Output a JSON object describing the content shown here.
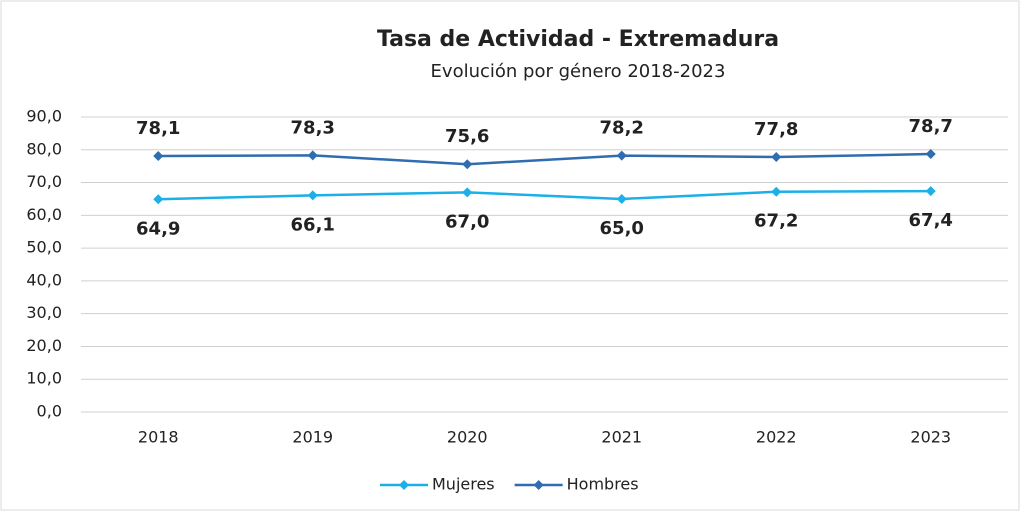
{
  "chart_data": {
    "type": "line",
    "title": "Tasa de Actividad - Extremadura",
    "subtitle": "Evolución por género 2018-2023",
    "categories": [
      "2018",
      "2019",
      "2020",
      "2021",
      "2022",
      "2023"
    ],
    "series": [
      {
        "name": "Mujeres",
        "color": "#1cb0e8",
        "values": [
          64.9,
          66.1,
          67.0,
          65.0,
          67.2,
          67.4
        ],
        "value_labels": [
          "64,9",
          "66,1",
          "67,0",
          "65,0",
          "67,2",
          "67,4"
        ]
      },
      {
        "name": "Hombres",
        "color": "#2f6db0",
        "values": [
          78.1,
          78.3,
          75.6,
          78.2,
          77.8,
          78.7
        ],
        "value_labels": [
          "78,1",
          "78,3",
          "75,6",
          "78,2",
          "77,8",
          "78,7"
        ]
      }
    ],
    "ylim": [
      0,
      90
    ],
    "yticks": [
      {
        "value": 0,
        "label": "0,0"
      },
      {
        "value": 10,
        "label": "10,0"
      },
      {
        "value": 20,
        "label": "20,0"
      },
      {
        "value": 30,
        "label": "30,0"
      },
      {
        "value": 40,
        "label": "40,0"
      },
      {
        "value": 50,
        "label": "50,0"
      },
      {
        "value": 60,
        "label": "60,0"
      },
      {
        "value": 70,
        "label": "70,0"
      },
      {
        "value": 80,
        "label": "80,0"
      },
      {
        "value": 90,
        "label": "90,0"
      }
    ],
    "grid": true,
    "legend": "bottom"
  }
}
